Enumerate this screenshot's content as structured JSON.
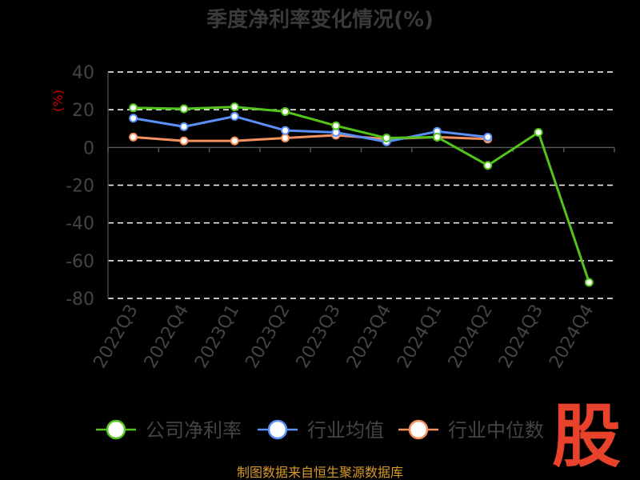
{
  "chart_data": {
    "type": "line",
    "title": "季度净利率变化情况(%)",
    "ylabel": "(%)",
    "ylim": [
      -80,
      40
    ],
    "yticks": [
      40,
      20,
      0,
      -20,
      -40,
      -60,
      -80
    ],
    "grid": "horizontal dashed",
    "legend_position": "bottom",
    "categories": [
      "2022Q3",
      "2022Q4",
      "2023Q1",
      "2023Q2",
      "2023Q3",
      "2023Q4",
      "2024Q1",
      "2024Q2",
      "2024Q3",
      "2024Q4"
    ],
    "series": [
      {
        "name": "公司净利率",
        "color": "#52c41a",
        "values": [
          21,
          20.5,
          21.5,
          19,
          11.5,
          5,
          5.5,
          -9.5,
          8,
          -71.5
        ]
      },
      {
        "name": "行业均值",
        "color": "#5b8ff9",
        "values": [
          15.5,
          11,
          16.5,
          9,
          8,
          3,
          8.5,
          5.5,
          null,
          null
        ]
      },
      {
        "name": "行业中位数",
        "color": "#f4915e",
        "values": [
          5.5,
          3.5,
          3.5,
          5,
          6.5,
          4.5,
          5.5,
          4.5,
          null,
          null
        ]
      }
    ]
  },
  "source": "制图数据来自恒生聚源数据库",
  "logo_text": "股"
}
